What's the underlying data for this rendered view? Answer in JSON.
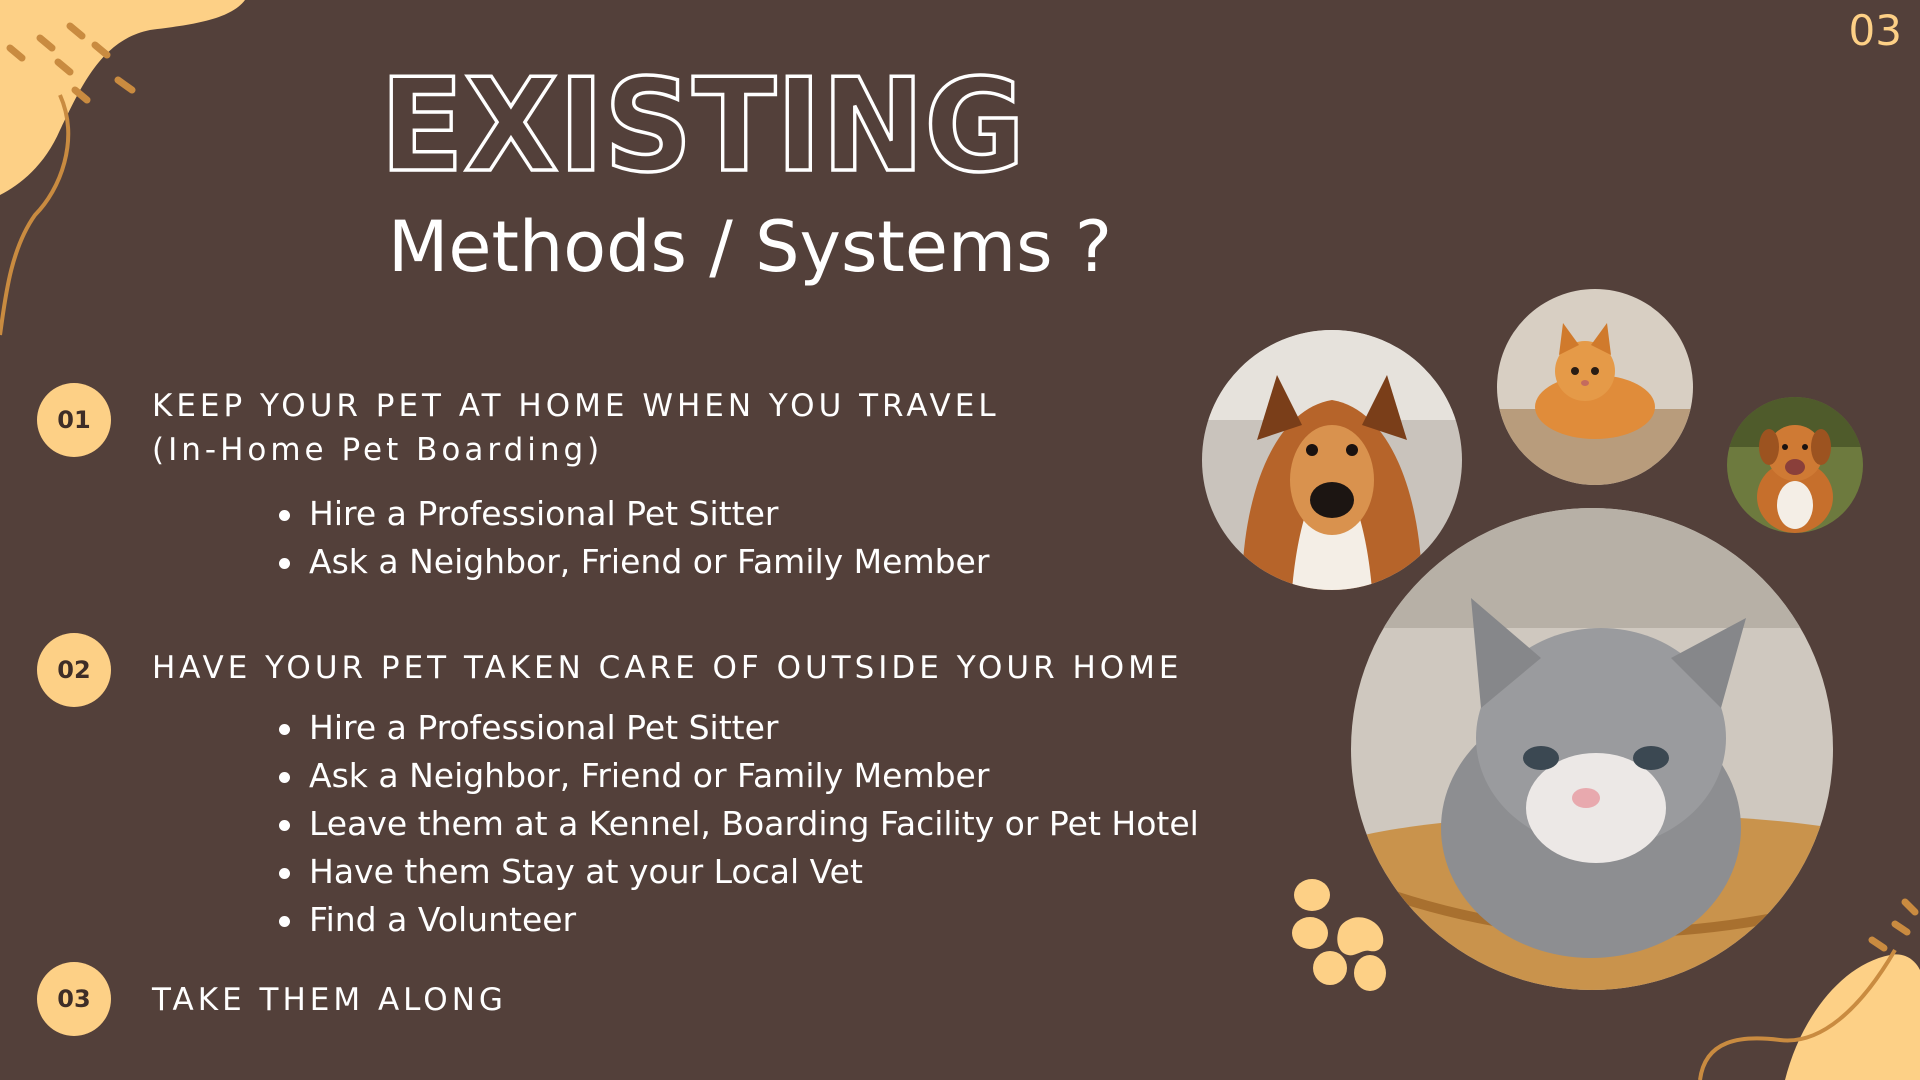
{
  "page": {
    "number": "03"
  },
  "title": {
    "main": "EXISTING",
    "sub": "Methods / Systems ?"
  },
  "colors": {
    "background": "#53403a",
    "accent": "#fdd086",
    "text": "#ffffff"
  },
  "sections": [
    {
      "badge": "01",
      "heading": "KEEP YOUR PET AT HOME WHEN YOU TRAVEL",
      "subheading": "(In-Home Pet Boarding)",
      "items": [
        "Hire a Professional Pet Sitter",
        "Ask a Neighbor, Friend or Family Member"
      ]
    },
    {
      "badge": "02",
      "heading": "HAVE YOUR PET TAKEN CARE OF OUTSIDE YOUR HOME",
      "items": [
        "Hire a Professional Pet Sitter",
        "Ask a Neighbor, Friend or Family Member",
        "Leave them at a Kennel, Boarding Facility or Pet Hotel",
        "Have them Stay at your Local Vet",
        "Find a Volunteer"
      ]
    },
    {
      "badge": "03",
      "heading": "TAKE THEM ALONG",
      "items": []
    }
  ],
  "photos": [
    "collie-dog-photo",
    "orange-kitten-photo",
    "happy-dog-photo",
    "grey-kitten-photo"
  ],
  "icons": [
    "paw-print-icon"
  ]
}
